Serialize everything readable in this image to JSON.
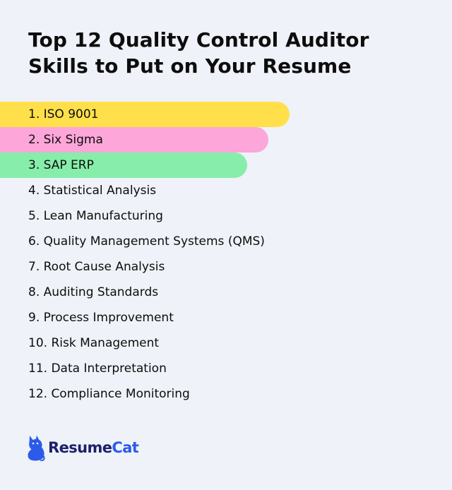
{
  "title_lines": [
    "Top 12 Quality Control Auditor",
    "Skills to Put on Your Resume"
  ],
  "skills": [
    {
      "label": "1. ISO 9001",
      "highlight": "#ffe04b"
    },
    {
      "label": "2. Six Sigma",
      "highlight": "#fca6d9"
    },
    {
      "label": "3. SAP ERP",
      "highlight": "#86eeaa"
    },
    {
      "label": "4. Statistical Analysis"
    },
    {
      "label": "5. Lean Manufacturing"
    },
    {
      "label": "6. Quality Management Systems (QMS)"
    },
    {
      "label": "7. Root Cause Analysis"
    },
    {
      "label": "8. Auditing Standards"
    },
    {
      "label": "9. Process Improvement"
    },
    {
      "label": "10. Risk Management"
    },
    {
      "label": "11. Data Interpretation"
    },
    {
      "label": "12. Compliance Monitoring"
    }
  ],
  "logo": {
    "icon": "cat-icon",
    "name_part1": "Resume",
    "name_part2": "Cat",
    "color_dark": "#1f1f6b",
    "color_accent": "#2c5bea"
  }
}
